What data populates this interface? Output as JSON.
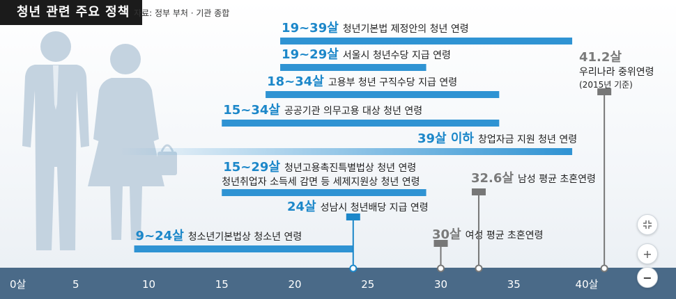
{
  "header": {
    "title": "청년 관련 주요 정책",
    "source": "자료: 정부 부처 · 기관 종합"
  },
  "colors": {
    "bar": "#2f93d3",
    "highlight": "#1c87c9",
    "axis_band": "#4a6a88",
    "marker_gray": "#777777",
    "silhouette": "#c4d3e0"
  },
  "icons": [
    "man-silhouette-icon",
    "woman-silhouette-icon",
    "handbag-icon",
    "recenter-icon",
    "zoom-in-icon",
    "zoom-out-icon"
  ],
  "controls": {
    "zoom_in": "+",
    "zoom_out": "−"
  },
  "chart_data": {
    "type": "bar",
    "orientation": "horizontal-range",
    "xlim": [
      0,
      42
    ],
    "xticks": [
      {
        "value": 0,
        "label": "0살"
      },
      {
        "value": 5,
        "label": "5"
      },
      {
        "value": 10,
        "label": "10"
      },
      {
        "value": 15,
        "label": "15"
      },
      {
        "value": 20,
        "label": "20"
      },
      {
        "value": 25,
        "label": "25"
      },
      {
        "value": 30,
        "label": "30"
      },
      {
        "value": 35,
        "label": "35"
      },
      {
        "value": 40,
        "label": "40살"
      }
    ],
    "ranges": [
      {
        "start": 19,
        "end": 39,
        "highlight": "19~39살",
        "label": "청년기본법 제정안의 청년 연령"
      },
      {
        "start": 19,
        "end": 29,
        "highlight": "19~29살",
        "label": "서울시 청년수당 지급 연령"
      },
      {
        "start": 18,
        "end": 34,
        "highlight": "18~34살",
        "label": "고용부 청년 구직수당 지급 연령"
      },
      {
        "start": 15,
        "end": 34,
        "highlight": "15~34살",
        "label": "공공기관 의무고용 대상 청년 연령"
      },
      {
        "start": 0,
        "end": 39,
        "highlight": "39살 이하",
        "label": "창업자금 지원 청년 연령",
        "gradient": true
      },
      {
        "start": 15,
        "end": 29,
        "highlight": "15~29살",
        "label": "청년고용촉진특별법상 청년 연령",
        "label2": "청년취업자 소득세 감면 등 세제지원상 청년 연령"
      },
      {
        "start": 9,
        "end": 24,
        "highlight": "9~24살",
        "label": "청소년기본법상 청소년 연령"
      }
    ],
    "markers": [
      {
        "value": 24,
        "highlight": "24살",
        "label": "성남시 청년배당 지급 연령",
        "color": "blue"
      },
      {
        "value": 30,
        "highlight": "30살",
        "label": "여성 평균 초혼연령",
        "color": "gray"
      },
      {
        "value": 32.6,
        "highlight": "32.6살",
        "label": "남성 평균 초혼연령",
        "color": "gray"
      },
      {
        "value": 41.2,
        "highlight": "41.2살",
        "label": "우리나라 중위연령",
        "label2": "(2015년 기준)",
        "color": "gray"
      }
    ]
  }
}
